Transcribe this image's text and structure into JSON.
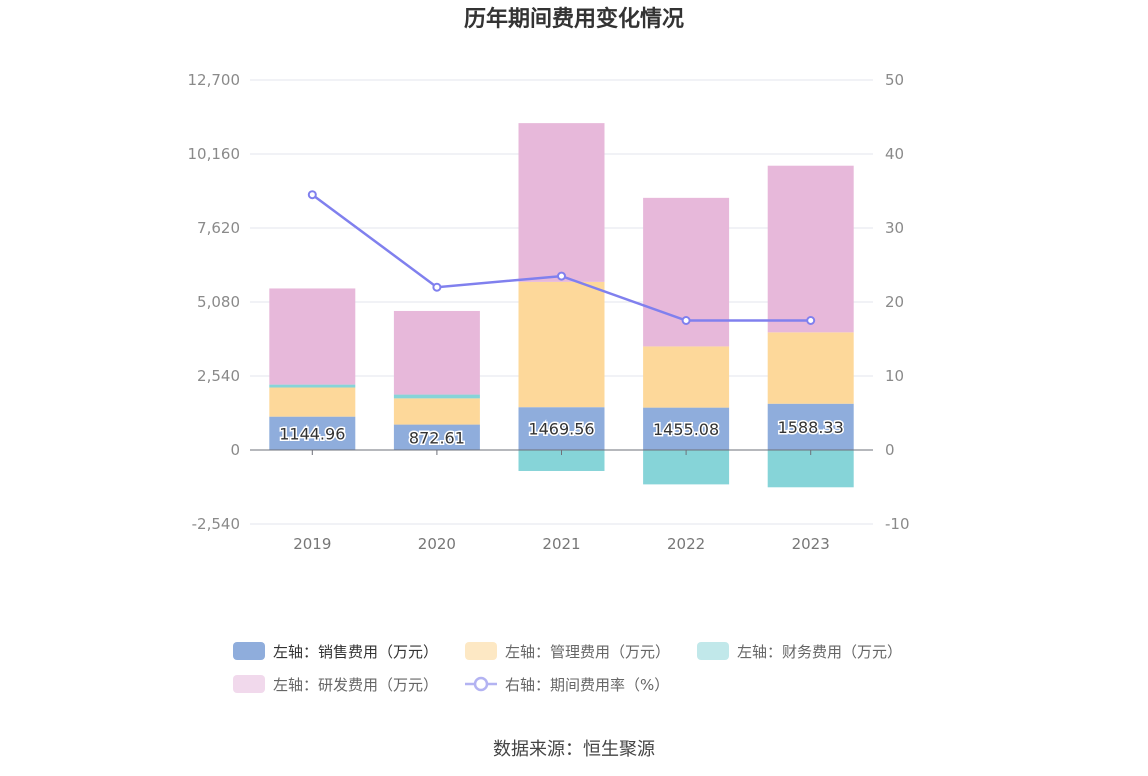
{
  "chart_data": {
    "type": "bar",
    "title": "历年期间费用变化情况",
    "categories": [
      "2019",
      "2020",
      "2021",
      "2022",
      "2023"
    ],
    "stacked": true,
    "y_left": {
      "min": -2540,
      "max": 12700,
      "ticks": [
        -2540,
        0,
        2540,
        5080,
        7620,
        10160,
        12700
      ],
      "tick_labels": [
        "-2,540",
        "0",
        "2,540",
        "5,080",
        "7,620",
        "10,160",
        "12,700"
      ]
    },
    "y_right": {
      "min": -10,
      "max": 50,
      "ticks": [
        -10,
        0,
        10,
        20,
        30,
        40,
        50
      ],
      "tick_labels": [
        "-10",
        "0",
        "10",
        "20",
        "30",
        "40",
        "50"
      ]
    },
    "series": [
      {
        "name": "左轴：销售费用（万元）",
        "type": "bar",
        "axis": "left",
        "color": "#8faddc",
        "legend_color": "#8faddc",
        "values": [
          1144.96,
          872.61,
          1469.56,
          1455.08,
          1588.33
        ],
        "data_labels": [
          "1144.96",
          "872.61",
          "1469.56",
          "1455.08",
          "1588.33"
        ]
      },
      {
        "name": "左轴：管理费用（万元）",
        "type": "bar",
        "axis": "left",
        "color": "#fdd89a",
        "legend_color": "#fde8c4",
        "values": [
          1000,
          900,
          4300,
          2100,
          2450
        ]
      },
      {
        "name": "左轴：财务费用（万元）",
        "type": "bar",
        "axis": "left",
        "color": "#86d4d8",
        "legend_color": "#c1e8ea",
        "values": [
          100,
          130,
          -720,
          -1180,
          -1280
        ]
      },
      {
        "name": "左轴：研发费用（万元）",
        "type": "bar",
        "axis": "left",
        "color": "#e7b8da",
        "legend_color": "#f1d9ec",
        "values": [
          3300,
          2870,
          5450,
          5100,
          5720
        ]
      },
      {
        "name": "右轴：期间费用率（%）",
        "type": "line",
        "axis": "right",
        "color": "#8080ee",
        "legend_color": "#b3b3f2",
        "values": [
          34.5,
          22.0,
          23.5,
          17.5,
          17.5
        ]
      }
    ],
    "legend_position": "bottom",
    "grid": true
  },
  "source": "数据来源：恒生聚源"
}
